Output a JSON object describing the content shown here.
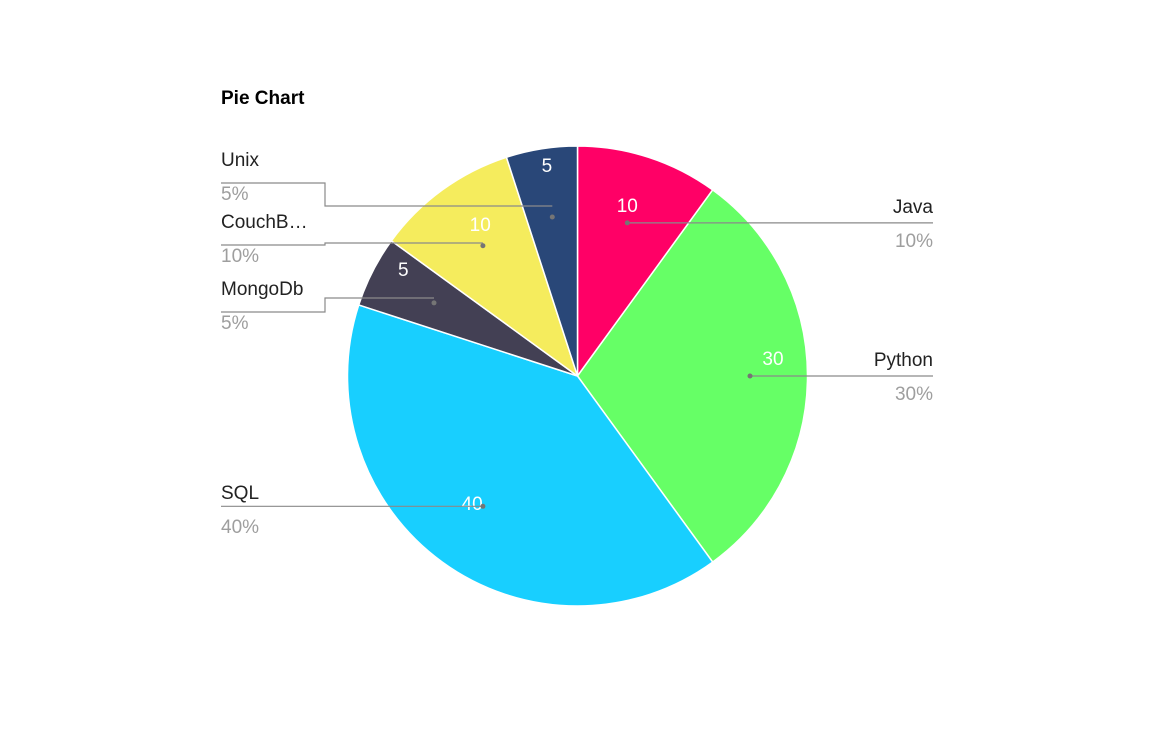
{
  "chart_data": {
    "type": "pie",
    "title": "Pie Chart",
    "slices": [
      {
        "name": "Java",
        "value": 10,
        "percent": "10%",
        "color": "#ff0066",
        "legend_label": "Java"
      },
      {
        "name": "Python",
        "value": 30,
        "percent": "30%",
        "color": "#66ff66",
        "legend_label": "Python"
      },
      {
        "name": "SQL",
        "value": 40,
        "percent": "40%",
        "color": "#18cfff",
        "legend_label": "SQL"
      },
      {
        "name": "MongoDb",
        "value": 5,
        "percent": "5%",
        "color": "#434054",
        "legend_label": "MongoDb"
      },
      {
        "name": "CouchDB",
        "value": 10,
        "percent": "10%",
        "color": "#f5ec5d",
        "legend_label": "CouchB…"
      },
      {
        "name": "Unix",
        "value": 5,
        "percent": "5%",
        "color": "#294778",
        "legend_label": "Unix"
      }
    ],
    "data_labels": "values inside slices",
    "legend": "labeled callouts with leader lines"
  }
}
